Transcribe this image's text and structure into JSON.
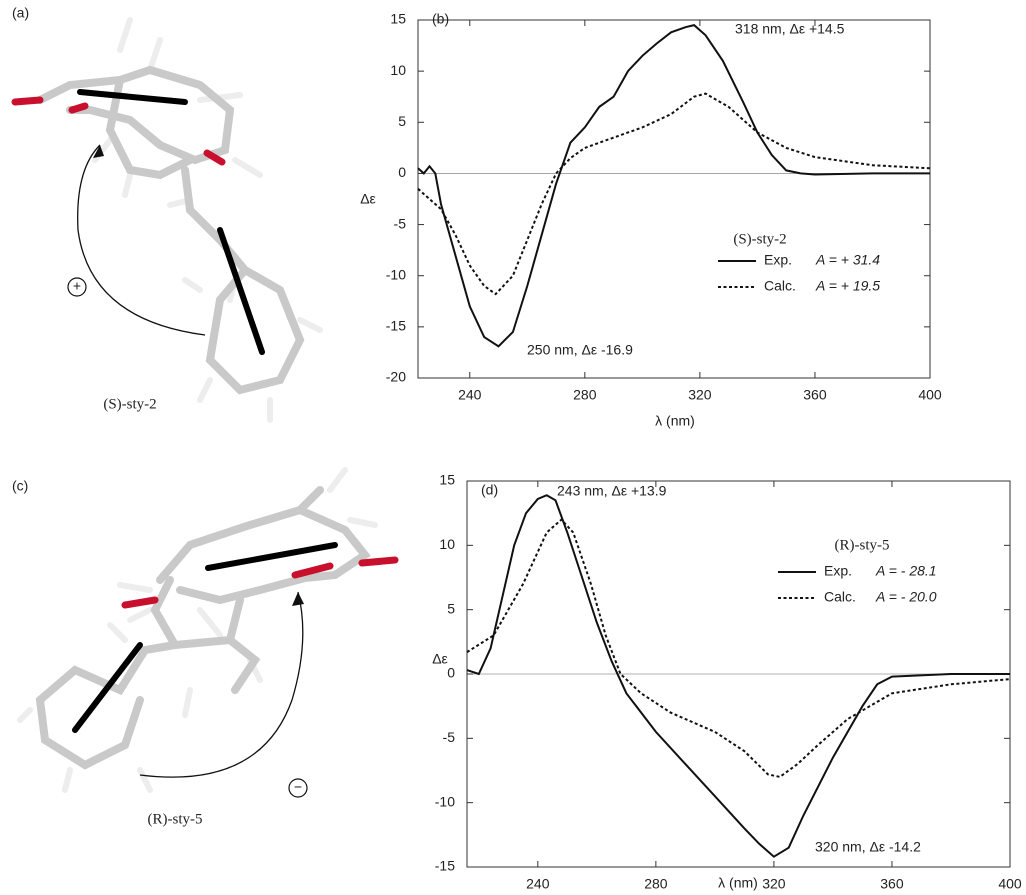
{
  "chart_data": [
    {
      "type": "line",
      "panel": "(b)",
      "xlabel": "λ (nm)",
      "ylabel": "Δε",
      "xlim": [
        222,
        400
      ],
      "ylim": [
        -20,
        15
      ],
      "xticks": [
        240,
        280,
        320,
        360,
        400
      ],
      "yticks": [
        -20,
        -15,
        -10,
        -5,
        0,
        5,
        10,
        15
      ],
      "legend_title": "(S)-sty-2",
      "series": [
        {
          "name": "Exp.",
          "note": "A = + 31.4",
          "color": "#111111",
          "dash": "solid",
          "x": [
            222,
            224,
            226,
            228,
            230,
            235,
            240,
            245,
            250,
            255,
            260,
            265,
            270,
            275,
            280,
            285,
            290,
            295,
            300,
            305,
            310,
            315,
            318,
            322,
            328,
            335,
            340,
            345,
            350,
            355,
            360,
            380,
            400
          ],
          "values": [
            0.5,
            0,
            0.7,
            0,
            -3,
            -8,
            -13,
            -16,
            -16.9,
            -15.5,
            -11,
            -6,
            -1,
            3,
            4.5,
            6.5,
            7.5,
            10,
            11.5,
            12.7,
            13.8,
            14.3,
            14.5,
            13.5,
            11,
            7,
            4,
            1.8,
            0.3,
            0,
            -0.1,
            0,
            0
          ]
        },
        {
          "name": "Calc.",
          "note": "A = + 19.5",
          "color": "#111111",
          "dash": "dotted",
          "x": [
            222,
            230,
            235,
            240,
            245,
            249,
            255,
            260,
            265,
            270,
            275,
            280,
            290,
            300,
            310,
            318,
            322,
            330,
            340,
            350,
            360,
            380,
            400
          ],
          "values": [
            -1.5,
            -3.5,
            -6,
            -9,
            -11,
            -11.8,
            -10,
            -6.5,
            -3,
            0,
            1.5,
            2.5,
            3.5,
            4.5,
            5.8,
            7.5,
            7.8,
            6.5,
            4,
            2.5,
            1.6,
            0.8,
            0.5
          ]
        }
      ],
      "annotations": [
        "318 nm, Δε +14.5",
        "250 nm, Δε -16.9"
      ]
    },
    {
      "type": "line",
      "panel": "(d)",
      "xlabel": "λ (nm)",
      "ylabel": "Δε",
      "xlim": [
        216,
        400
      ],
      "ylim": [
        -15,
        15
      ],
      "xticks": [
        240,
        280,
        320,
        360,
        400
      ],
      "yticks": [
        -15,
        -10,
        -5,
        0,
        5,
        10,
        15
      ],
      "legend_title": "(R)-sty-5",
      "series": [
        {
          "name": "Exp.",
          "note": "A = - 28.1",
          "color": "#111111",
          "dash": "solid",
          "x": [
            216,
            220,
            224,
            228,
            232,
            236,
            240,
            243,
            246,
            250,
            255,
            260,
            265,
            270,
            280,
            290,
            300,
            310,
            315,
            320,
            325,
            330,
            340,
            350,
            355,
            360,
            380,
            400
          ],
          "values": [
            0.3,
            0,
            2,
            6,
            10,
            12.5,
            13.6,
            13.9,
            13.5,
            11,
            7.5,
            4,
            1,
            -1.5,
            -4.5,
            -7,
            -9.5,
            -12,
            -13.2,
            -14.2,
            -13.5,
            -11,
            -6.5,
            -2.5,
            -0.8,
            -0.2,
            0,
            0
          ]
        },
        {
          "name": "Calc.",
          "note": "A = - 20.0",
          "color": "#111111",
          "dash": "dotted",
          "x": [
            216,
            225,
            235,
            243,
            248,
            252,
            258,
            263,
            268,
            275,
            285,
            300,
            310,
            318,
            322,
            328,
            335,
            345,
            360,
            380,
            400
          ],
          "values": [
            1.7,
            3,
            7,
            11,
            12,
            11,
            7,
            3,
            0,
            -1.5,
            -3,
            -4.5,
            -6,
            -7.8,
            -8,
            -7,
            -5.5,
            -3.5,
            -1.5,
            -0.8,
            -0.4
          ]
        }
      ],
      "annotations": [
        "243 nm, Δε +13.9",
        "320 nm, Δε -14.2"
      ]
    }
  ],
  "molecules": [
    {
      "panel": "(a)",
      "label": "(S)-sty-2",
      "sign": "+"
    },
    {
      "panel": "(c)",
      "label": "(R)-sty-5",
      "sign": "−"
    }
  ]
}
